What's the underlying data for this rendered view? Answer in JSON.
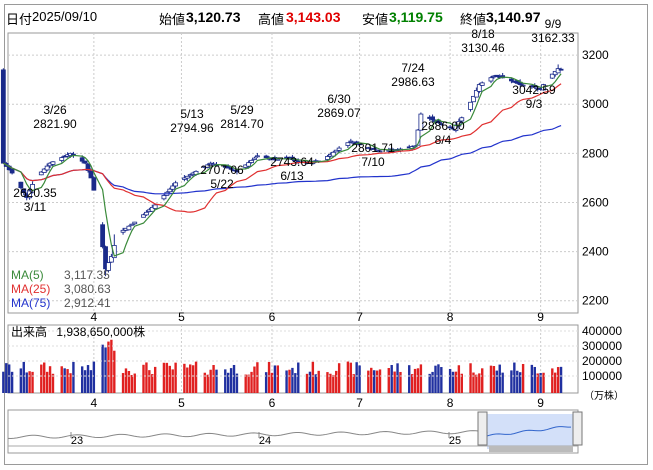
{
  "header": {
    "date_label": "日付",
    "date": "2025/09/10",
    "open_label": "始値",
    "open": "3,120.73",
    "high_label": "高値",
    "high": "3,143.03",
    "low_label": "安値",
    "low": "3,119.75",
    "close_label": "終値",
    "close": "3,140.97"
  },
  "colors": {
    "ma5": "#3a8a3a",
    "ma25": "#e03030",
    "ma75": "#2233cc",
    "up": "#ffffff",
    "down": "#1a2a8a",
    "vol_up": "#e02020",
    "vol_down": "#2030a0"
  },
  "legend": {
    "ma5_label": "MA(5)",
    "ma5_value": "3,117.35",
    "ma25_label": "MA(25)",
    "ma25_value": "3,080.63",
    "ma75_label": "MA(75)",
    "ma75_value": "2,912.41"
  },
  "volume_panel": {
    "label": "出来高",
    "value": "1,938,650,000株",
    "unit": "（万株）",
    "ticks": [
      "400000",
      "300000",
      "200000",
      "100000"
    ]
  },
  "navigator": {
    "ticks": [
      "23",
      "24",
      "25"
    ]
  },
  "chart_data": {
    "type": "candlestick",
    "months": [
      "4",
      "5",
      "6",
      "7",
      "8",
      "9"
    ],
    "y_ticks": [
      "3200",
      "3000",
      "2800",
      "2600",
      "2400",
      "2200"
    ],
    "ylim": [
      2150,
      3290
    ],
    "annotations": [
      {
        "date": "3/11",
        "value": "2620.35",
        "text": "2620.35",
        "date_text": "3/11"
      },
      {
        "date": "3/26",
        "value": "2821.90",
        "text": "2821.90",
        "date_text": "3/26"
      },
      {
        "date": "5/13",
        "value": "2794.96",
        "text": "2794.96",
        "date_text": "5/13"
      },
      {
        "date": "5/22",
        "value": "2707.06",
        "text": "2707.06",
        "date_text": "5/22"
      },
      {
        "date": "5/29",
        "value": "2814.70",
        "text": "2814.70",
        "date_text": "5/29"
      },
      {
        "date": "6/13",
        "value": "2743.64",
        "text": "2743.64",
        "date_text": "6/13"
      },
      {
        "date": "6/30",
        "value": "2869.07",
        "text": "2869.07",
        "date_text": "6/30"
      },
      {
        "date": "7/10",
        "value": "2801.71",
        "text": "2801.71",
        "date_text": "7/10"
      },
      {
        "date": "7/24",
        "value": "2986.63",
        "text": "2986.63",
        "date_text": "7/24"
      },
      {
        "date": "8/4",
        "value": "2886.00",
        "text": "2886.00",
        "date_text": "8/4"
      },
      {
        "date": "8/18",
        "value": "3130.46",
        "text": "3130.46",
        "date_text": "8/18"
      },
      {
        "date": "9/3",
        "value": "3042.59",
        "text": "3042.59",
        "date_text": "9/3"
      },
      {
        "date": "9/9",
        "value": "3162.33",
        "text": "3162.33",
        "date_text": "9/9"
      }
    ]
  }
}
